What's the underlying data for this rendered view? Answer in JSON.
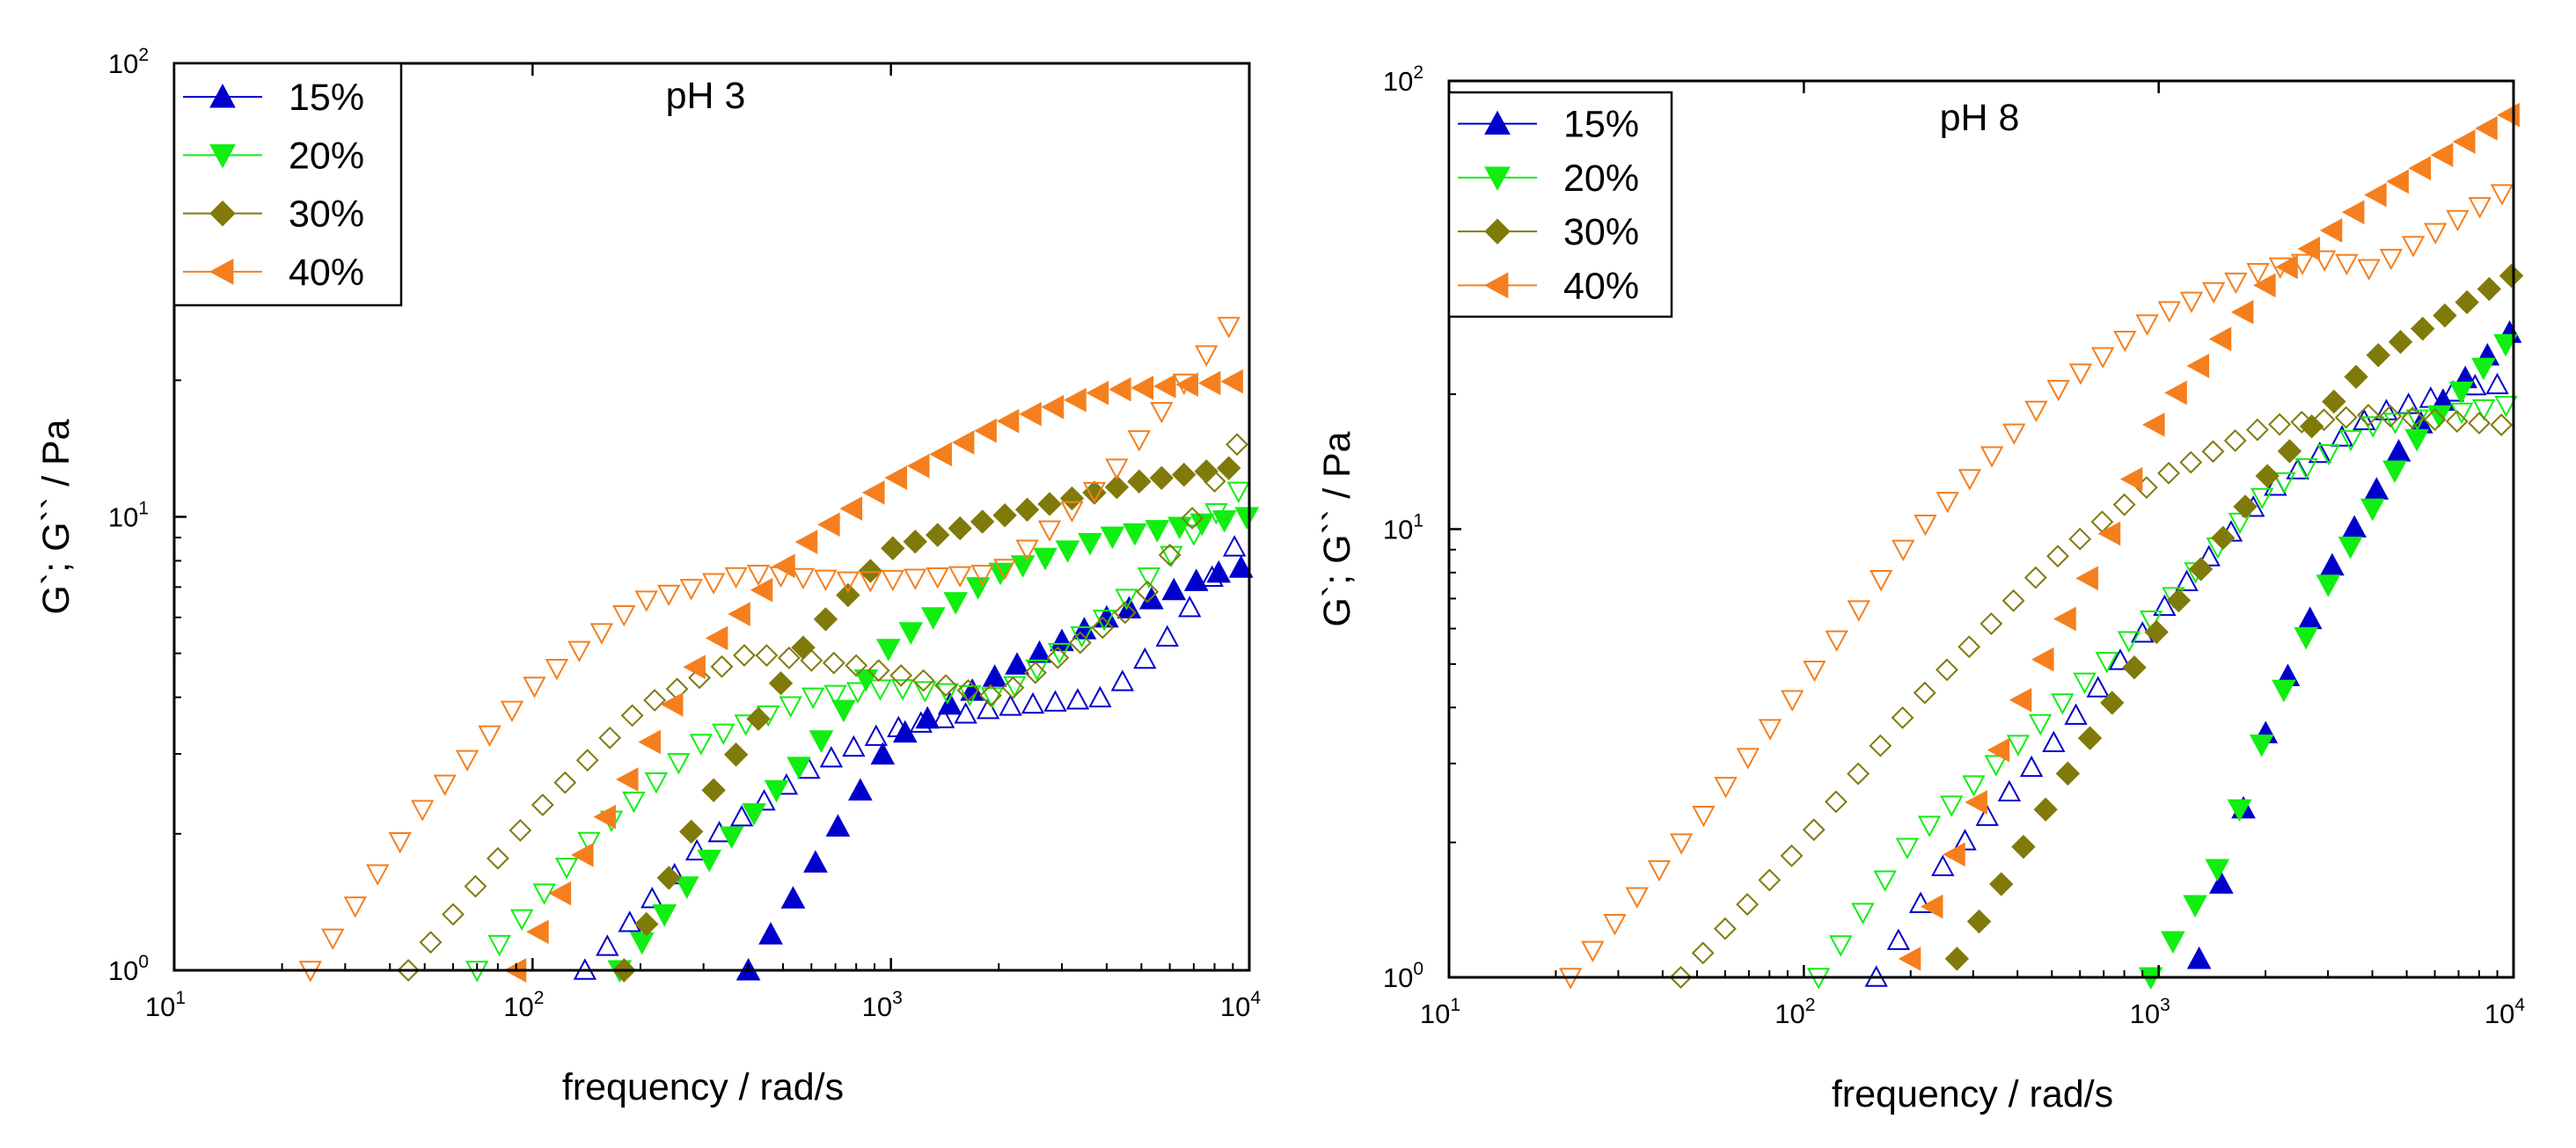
{
  "chart_data": [
    {
      "type": "scatter",
      "title": "pH 3",
      "xlabel": "frequency / rad/s",
      "ylabel": "G`; G`` / Pa",
      "xscale": "log",
      "yscale": "log",
      "xlim": [
        10,
        10000
      ],
      "ylim": [
        1,
        100
      ],
      "x_ticks": [
        "10",
        "100",
        "1000",
        "10000"
      ],
      "x_tick_labels": [
        {
          "base": "10",
          "exp": "1"
        },
        {
          "base": "10",
          "exp": "2"
        },
        {
          "base": "10",
          "exp": "3"
        },
        {
          "base": "10",
          "exp": "4"
        }
      ],
      "y_tick_labels": [
        {
          "base": "10",
          "exp": "0"
        },
        {
          "base": "10",
          "exp": "1"
        },
        {
          "base": "10",
          "exp": "2"
        }
      ],
      "legend": {
        "position": "top-left",
        "entries": [
          "15%",
          "20%",
          "30%",
          "40%"
        ]
      },
      "series": [
        {
          "name": "15%",
          "marker": "triangle-up",
          "color": "#0000CC",
          "modulus": "G'",
          "filled": true,
          "start": [
            400,
            1.0
          ],
          "points": [
            [
              1000,
              3.2
            ],
            [
              2000,
              4.5
            ],
            [
              4000,
              6.0
            ],
            [
              8000,
              7.5
            ],
            [
              10000,
              7.8
            ]
          ]
        },
        {
          "name": "15%",
          "marker": "triangle-up",
          "color": "#0000CC",
          "modulus": "G''",
          "filled": false,
          "start": [
            140,
            1.0
          ],
          "points": [
            [
              300,
              1.9
            ],
            [
              600,
              2.8
            ],
            [
              1000,
              3.4
            ],
            [
              2000,
              3.8
            ],
            [
              4000,
              4.0
            ],
            [
              6000,
              5.5
            ],
            [
              10000,
              9.5
            ]
          ]
        },
        {
          "name": "20%",
          "marker": "triangle-down",
          "color": "#11EE11",
          "modulus": "G'",
          "filled": true,
          "start": [
            175,
            1.0
          ],
          "points": [
            [
              300,
              1.7
            ],
            [
              600,
              3.0
            ],
            [
              1000,
              5.2
            ],
            [
              2000,
              7.5
            ],
            [
              4000,
              9.0
            ],
            [
              10000,
              10.0
            ]
          ]
        },
        {
          "name": "20%",
          "marker": "triangle-down",
          "color": "#11EE11",
          "modulus": "G''",
          "filled": false,
          "start": [
            70,
            1.0
          ],
          "points": [
            [
              150,
              2.0
            ],
            [
              300,
              3.2
            ],
            [
              600,
              4.0
            ],
            [
              1000,
              4.2
            ],
            [
              2000,
              4.0
            ],
            [
              4000,
              6.0
            ],
            [
              10000,
              12.0
            ]
          ]
        },
        {
          "name": "30%",
          "marker": "diamond",
          "color": "#807A0A",
          "modulus": "G'",
          "filled": true,
          "start": [
            180,
            1.0
          ],
          "points": [
            [
              300,
              2.3
            ],
            [
              600,
              5.5
            ],
            [
              1000,
              8.5
            ],
            [
              2000,
              10.0
            ],
            [
              5000,
              12.0
            ],
            [
              10000,
              13.0
            ]
          ]
        },
        {
          "name": "30%",
          "marker": "diamond",
          "color": "#807A0A",
          "modulus": "G''",
          "filled": false,
          "start": [
            45,
            1.0
          ],
          "points": [
            [
              100,
              2.2
            ],
            [
              200,
              3.8
            ],
            [
              400,
              5.0
            ],
            [
              800,
              4.7
            ],
            [
              2000,
              4.0
            ],
            [
              5000,
              6.5
            ],
            [
              10000,
              16.0
            ]
          ]
        },
        {
          "name": "40%",
          "marker": "triangle-left",
          "color": "#F57F1E",
          "modulus": "G'",
          "filled": true,
          "start": [
            90,
            1.0
          ],
          "points": [
            [
              150,
              2.0
            ],
            [
              300,
              5.0
            ],
            [
              600,
              9.0
            ],
            [
              1000,
              12.0
            ],
            [
              2000,
              16.0
            ],
            [
              4000,
              19.0
            ],
            [
              10000,
              20.0
            ]
          ]
        },
        {
          "name": "40%",
          "marker": "triangle-down",
          "color": "#F57F1E",
          "modulus": "G''",
          "filled": false,
          "start": [
            24,
            1.0
          ],
          "points": [
            [
              50,
              2.3
            ],
            [
              100,
              4.2
            ],
            [
              200,
              6.5
            ],
            [
              400,
              7.5
            ],
            [
              800,
              7.2
            ],
            [
              2000,
              7.5
            ],
            [
              4000,
              12.0
            ],
            [
              10000,
              30.0
            ]
          ]
        }
      ]
    },
    {
      "type": "scatter",
      "title": "pH 8",
      "xlabel": "frequency / rad/s",
      "ylabel": "G`; G`` / Pa",
      "xscale": "log",
      "yscale": "log",
      "xlim": [
        10,
        10000
      ],
      "ylim": [
        1,
        100
      ],
      "x_ticks": [
        "10",
        "100",
        "1000",
        "10000"
      ],
      "x_tick_labels": [
        {
          "base": "10",
          "exp": "1"
        },
        {
          "base": "10",
          "exp": "2"
        },
        {
          "base": "10",
          "exp": "3"
        },
        {
          "base": "10",
          "exp": "4"
        }
      ],
      "y_tick_labels": [
        {
          "base": "10",
          "exp": "0"
        },
        {
          "base": "10",
          "exp": "1"
        },
        {
          "base": "10",
          "exp": "2"
        }
      ],
      "legend": {
        "position": "top-left",
        "entries": [
          "15%",
          "20%",
          "30%",
          "40%"
        ]
      },
      "series": [
        {
          "name": "15%",
          "marker": "triangle-up",
          "color": "#0000CC",
          "modulus": "G'",
          "filled": true,
          "start": [
            1300,
            1.1
          ],
          "points": [
            [
              2000,
              3.5
            ],
            [
              3000,
              8.0
            ],
            [
              5000,
              16.0
            ],
            [
              10000,
              28.0
            ]
          ]
        },
        {
          "name": "15%",
          "marker": "triangle-up",
          "color": "#0000CC",
          "modulus": "G''",
          "filled": false,
          "start": [
            160,
            1.0
          ],
          "points": [
            [
              250,
              1.8
            ],
            [
              500,
              3.3
            ],
            [
              1000,
              6.5
            ],
            [
              2000,
              12.0
            ],
            [
              4000,
              18.0
            ],
            [
              8000,
              21.0
            ],
            [
              10000,
              21.0
            ]
          ]
        },
        {
          "name": "20%",
          "marker": "triangle-down",
          "color": "#11EE11",
          "modulus": "G'",
          "filled": true,
          "start": [
            950,
            1.0
          ],
          "points": [
            [
              1500,
              1.8
            ],
            [
              2000,
              3.5
            ],
            [
              3000,
              7.5
            ],
            [
              5000,
              15.0
            ],
            [
              10000,
              27.0
            ]
          ]
        },
        {
          "name": "20%",
          "marker": "triangle-down",
          "color": "#11EE11",
          "modulus": "G''",
          "filled": false,
          "start": [
            110,
            1.0
          ],
          "points": [
            [
              200,
              2.0
            ],
            [
              400,
              3.3
            ],
            [
              1000,
              6.5
            ],
            [
              2000,
              12.0
            ],
            [
              4000,
              17.0
            ],
            [
              10000,
              19.0
            ]
          ]
        },
        {
          "name": "30%",
          "marker": "diamond",
          "color": "#807A0A",
          "modulus": "G'",
          "filled": true,
          "start": [
            270,
            1.1
          ],
          "points": [
            [
              500,
              2.5
            ],
            [
              1000,
              6.0
            ],
            [
              2000,
              13.0
            ],
            [
              4000,
              24.0
            ],
            [
              10000,
              37.0
            ]
          ]
        },
        {
          "name": "30%",
          "marker": "diamond",
          "color": "#807A0A",
          "modulus": "G''",
          "filled": false,
          "start": [
            45,
            1.0
          ],
          "points": [
            [
              100,
              2.0
            ],
            [
              200,
              4.0
            ],
            [
              500,
              8.5
            ],
            [
              1000,
              13.0
            ],
            [
              2000,
              17.0
            ],
            [
              4000,
              18.0
            ],
            [
              10000,
              17.0
            ]
          ]
        },
        {
          "name": "40%",
          "marker": "triangle-left",
          "color": "#F57F1E",
          "modulus": "G'",
          "filled": true,
          "start": [
            200,
            1.1
          ],
          "points": [
            [
              400,
              4.0
            ],
            [
              700,
              9.0
            ],
            [
              1000,
              18.0
            ],
            [
              2000,
              35.0
            ],
            [
              4000,
              55.0
            ],
            [
              10000,
              85.0
            ]
          ]
        },
        {
          "name": "40%",
          "marker": "triangle-down",
          "color": "#F57F1E",
          "modulus": "G''",
          "filled": false,
          "start": [
            22,
            1.0
          ],
          "points": [
            [
              50,
              2.2
            ],
            [
              100,
              4.5
            ],
            [
              200,
              9.5
            ],
            [
              500,
              20.0
            ],
            [
              1000,
              30.0
            ],
            [
              2000,
              38.0
            ],
            [
              3000,
              40.0
            ],
            [
              4000,
              38.0
            ],
            [
              10000,
              58.0
            ]
          ]
        }
      ]
    }
  ]
}
